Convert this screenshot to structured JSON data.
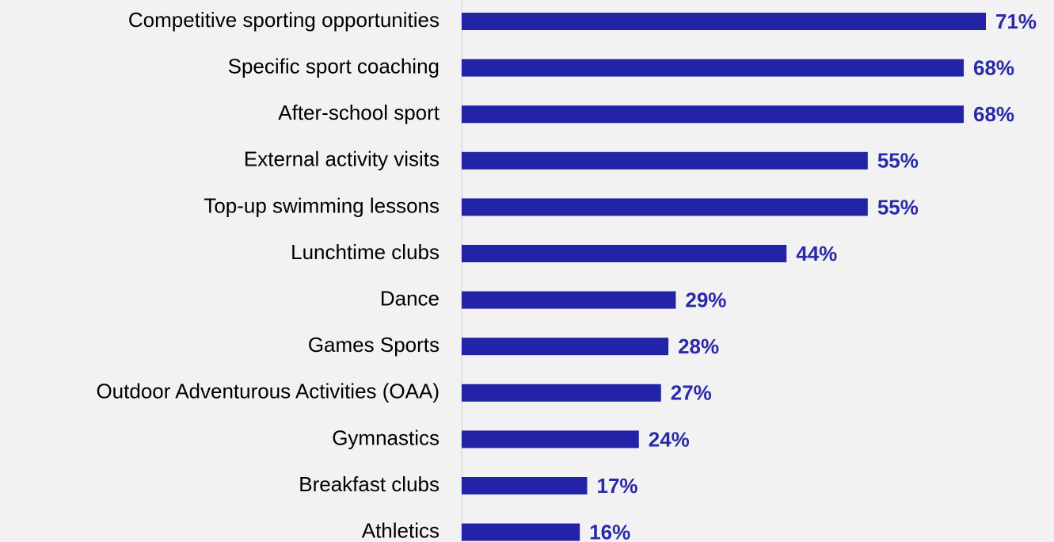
{
  "chart_data": {
    "type": "bar",
    "orientation": "horizontal",
    "categories": [
      "Competitive sporting opportunities",
      "Specific sport coaching",
      "After-school sport",
      "External activity visits",
      "Top-up swimming lessons",
      "Lunchtime clubs",
      "Dance",
      "Games Sports",
      "Outdoor Adventurous Activities (OAA)",
      "Gymnastics",
      "Breakfast clubs",
      "Athletics"
    ],
    "values": [
      71,
      68,
      68,
      55,
      55,
      44,
      29,
      28,
      27,
      24,
      17,
      16
    ],
    "value_labels": [
      "71%",
      "68%",
      "68%",
      "55%",
      "55%",
      "44%",
      "29%",
      "28%",
      "27%",
      "24%",
      "17%",
      "16%"
    ],
    "color": "#2323a8"
  }
}
